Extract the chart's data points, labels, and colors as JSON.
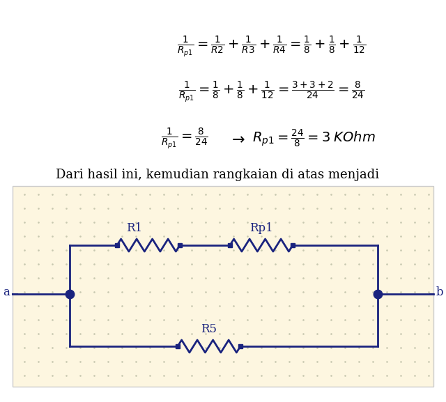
{
  "bg_color": "#ffffff",
  "circuit_bg": "#fdf6e0",
  "line_color": "#1a237e",
  "formula_color": "#000000",
  "fig_width": 6.4,
  "fig_height": 5.77,
  "text_sentence": "Dari hasil ini, kemudian rangkaian di atas menjadi",
  "eq1": "$\\frac{1}{R_{p1}} = \\frac{1}{R2} + \\frac{1}{R3} + \\frac{1}{R4} = \\frac{1}{8} + \\frac{1}{8} + \\frac{1}{12}$",
  "eq2": "$\\frac{1}{R_{p1}} = \\frac{1}{8} + \\frac{1}{8} + \\frac{1}{12} = \\frac{3+3+2}{24} = \\frac{8}{24}$",
  "eq3a": "$\\frac{1}{R_{p1}} = \\frac{8}{24}$",
  "eq3b": "$\\rightarrow$",
  "eq3c": "$R_{p1} = \\frac{24}{8} = 3\\; KOhm$"
}
